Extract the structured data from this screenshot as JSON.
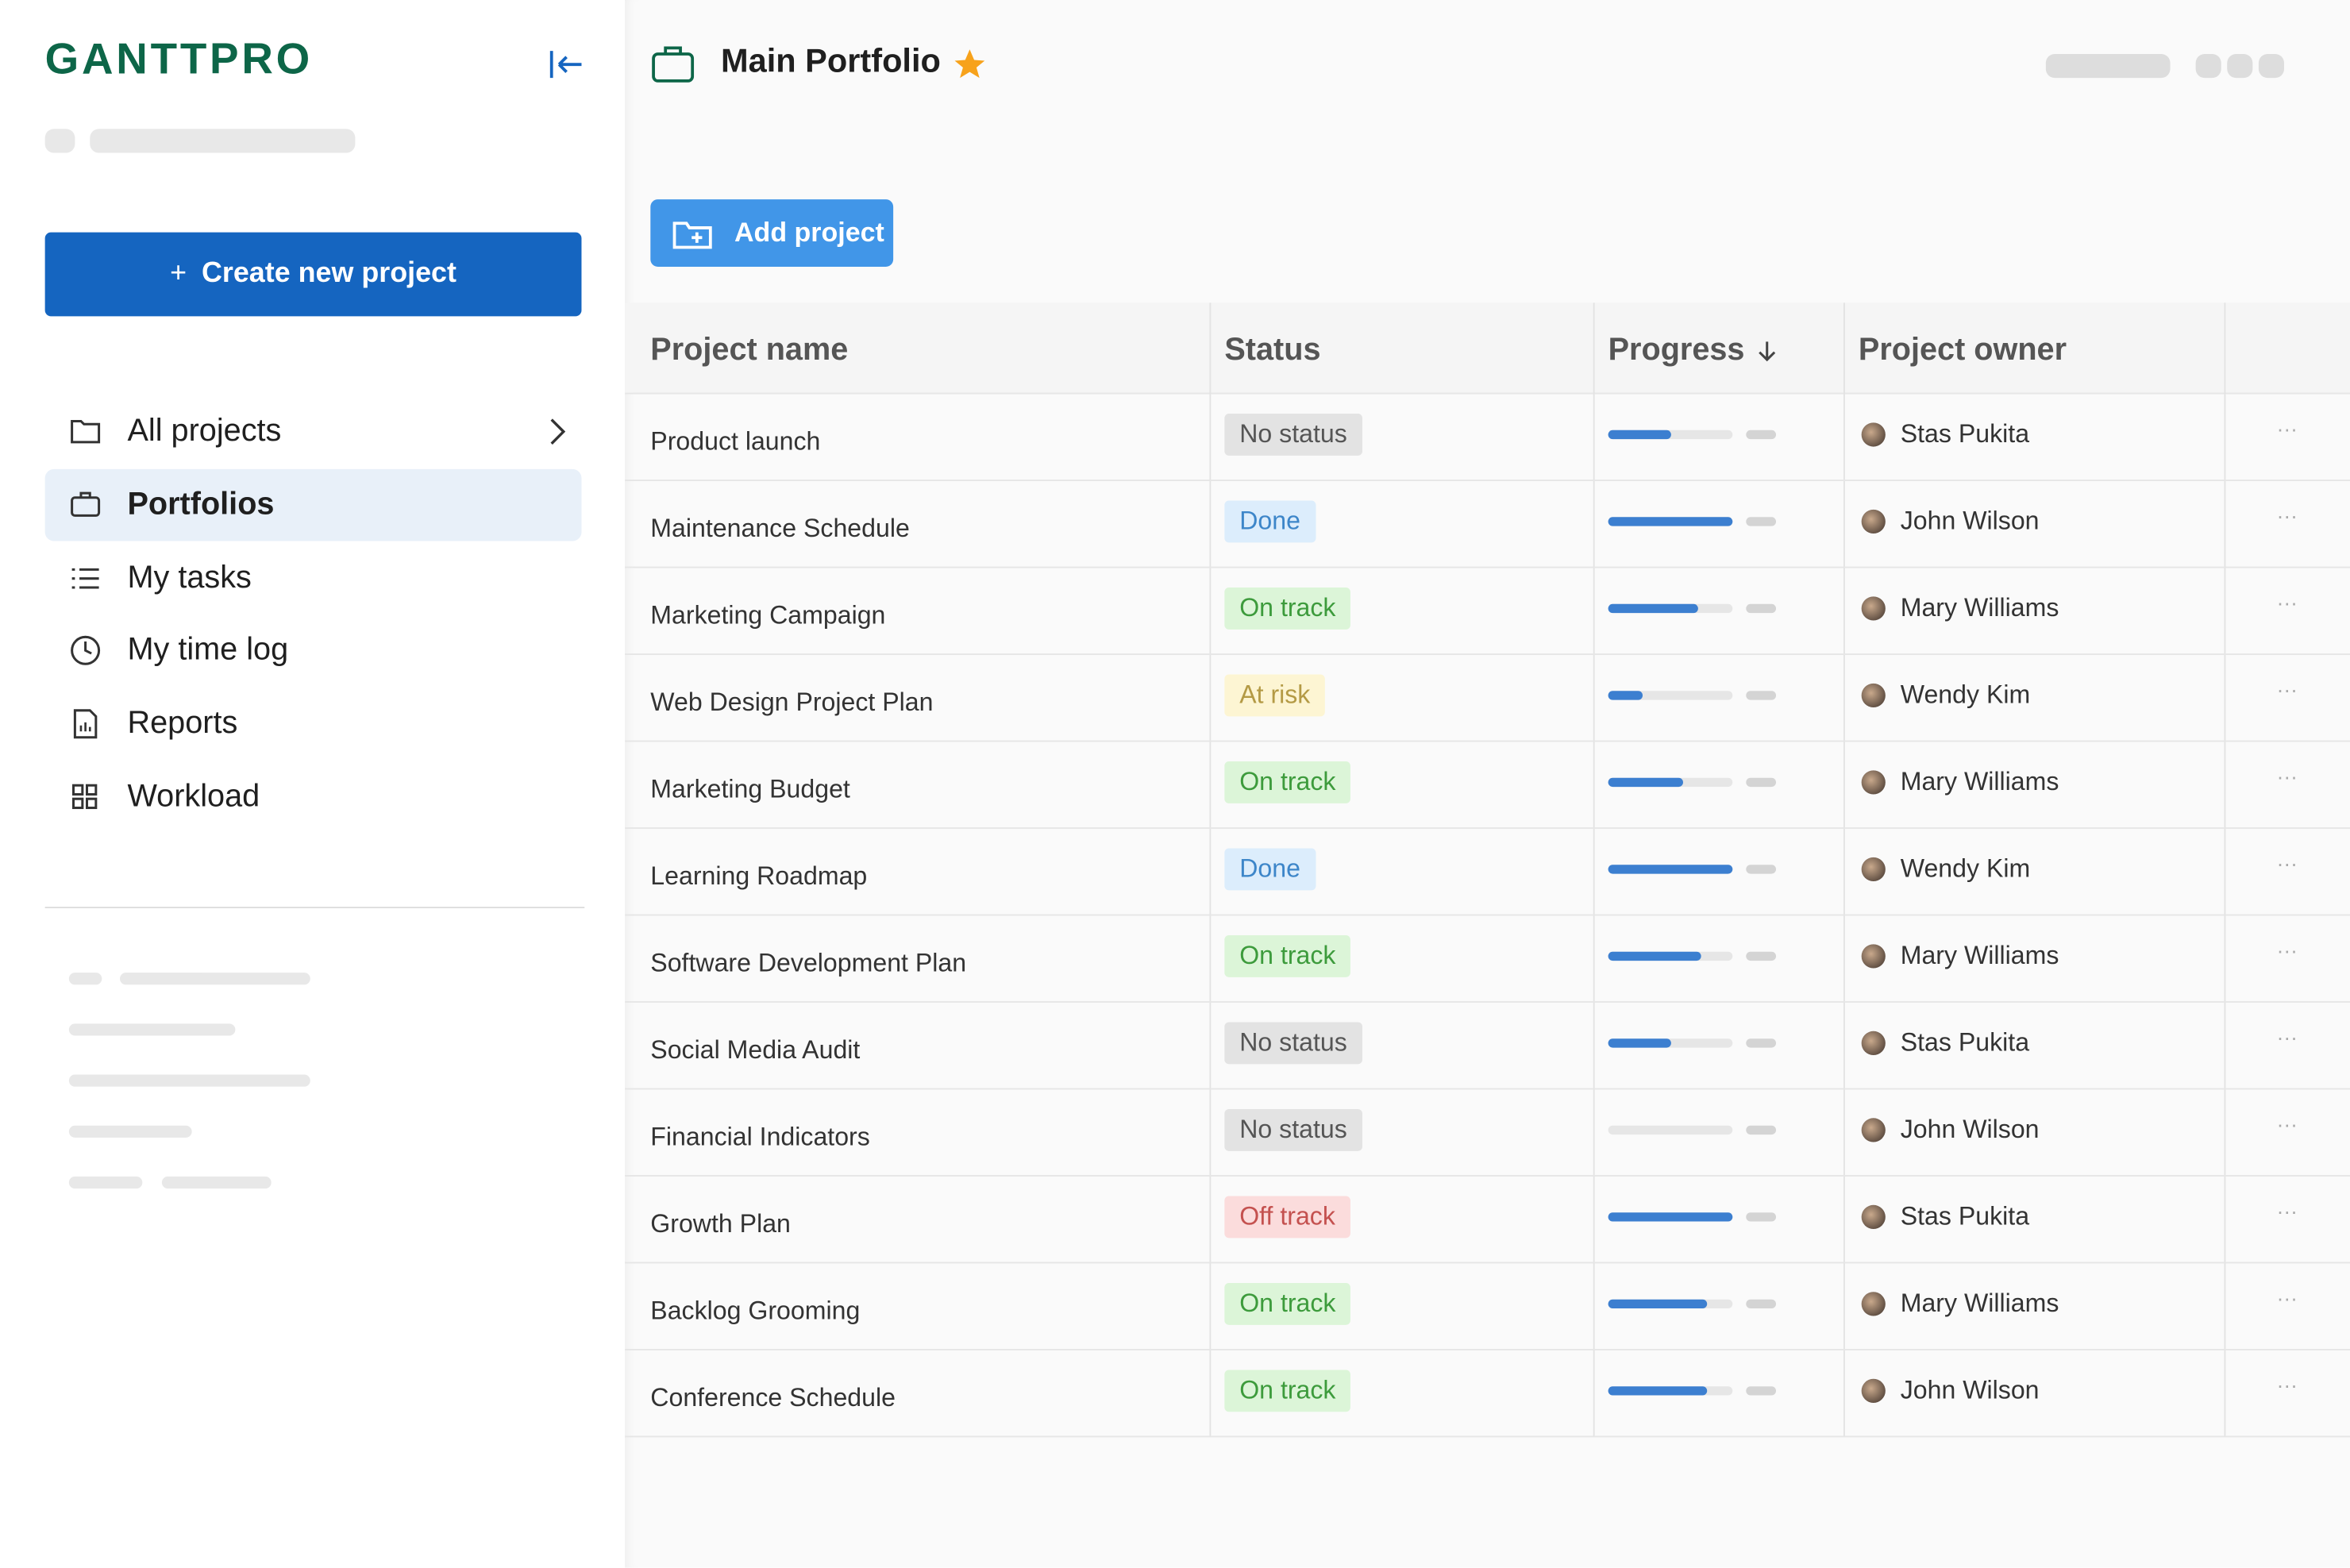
{
  "sidebar": {
    "logo": "GANTTPRO",
    "create_button": "Create new project",
    "create_icon": "+",
    "nav": [
      "All projects",
      "Portfolios",
      "My tasks",
      "My time log",
      "Reports",
      "Workload"
    ]
  },
  "header": {
    "title": "Main Portfolio"
  },
  "add_button": "Add project",
  "table": {
    "columns": [
      "Project name",
      "Status",
      "Progress",
      "Project owner"
    ],
    "rows": [
      {
        "name": "Product launch",
        "status": {
          "text": "No status",
          "bg": "#e3e3e3",
          "fg": "#555555"
        },
        "progress": 50,
        "owner": "Stas Pukita"
      },
      {
        "name": "Maintenance Schedule",
        "status": {
          "text": "Done",
          "bg": "#dcedfc",
          "fg": "#3d86c9"
        },
        "progress": 100,
        "owner": "John Wilson"
      },
      {
        "name": "Marketing Campaign",
        "status": {
          "text": "On track",
          "bg": "#dcf5d8",
          "fg": "#3d9b3c"
        },
        "progress": 72,
        "owner": "Mary Williams"
      },
      {
        "name": "Web Design Project Plan",
        "status": {
          "text": "At risk",
          "bg": "#fdf5d3",
          "fg": "#b49a45"
        },
        "progress": 28,
        "owner": "Wendy Kim"
      },
      {
        "name": "Marketing Budget",
        "status": {
          "text": "On track",
          "bg": "#dcf5d8",
          "fg": "#3d9b3c"
        },
        "progress": 60,
        "owner": "Mary Williams"
      },
      {
        "name": "Learning Roadmap",
        "status": {
          "text": "Done",
          "bg": "#dcedfc",
          "fg": "#3d86c9"
        },
        "progress": 100,
        "owner": "Wendy Kim"
      },
      {
        "name": "Software Development Plan",
        "status": {
          "text": "On track",
          "bg": "#dcf5d8",
          "fg": "#3d9b3c"
        },
        "progress": 75,
        "owner": "Mary Williams"
      },
      {
        "name": "Social Media Audit",
        "status": {
          "text": "No status",
          "bg": "#e3e3e3",
          "fg": "#555555"
        },
        "progress": 50,
        "owner": "Stas Pukita"
      },
      {
        "name": "Financial Indicators",
        "status": {
          "text": "No status",
          "bg": "#e3e3e3",
          "fg": "#555555"
        },
        "progress": 0,
        "owner": "John Wilson"
      },
      {
        "name": "Growth Plan",
        "status": {
          "text": "Off track",
          "bg": "#fbdcdc",
          "fg": "#c4514f"
        },
        "progress": 100,
        "owner": "Stas Pukita"
      },
      {
        "name": "Backlog Grooming",
        "status": {
          "text": "On track",
          "bg": "#dcf5d8",
          "fg": "#3d9b3c"
        },
        "progress": 80,
        "owner": "Mary Williams"
      },
      {
        "name": "Conference Schedule",
        "status": {
          "text": "On track",
          "bg": "#dcf5d8",
          "fg": "#3d9b3c"
        },
        "progress": 80,
        "owner": "John Wilson"
      }
    ]
  }
}
